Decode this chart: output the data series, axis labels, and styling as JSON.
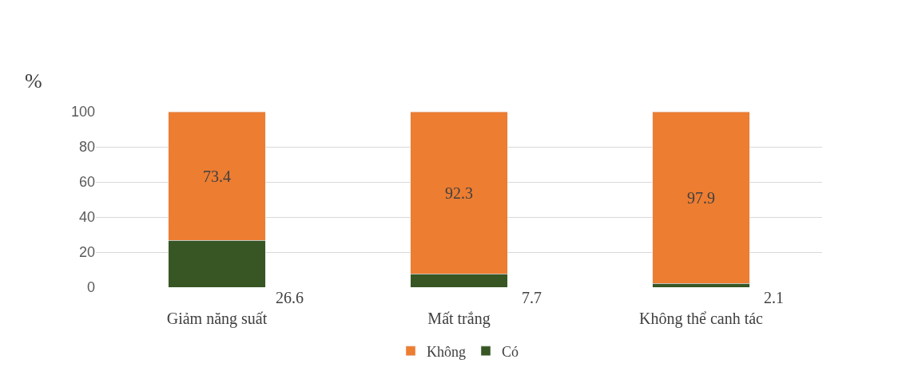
{
  "chart_data": {
    "type": "bar",
    "stacked": true,
    "ylabel": "%",
    "categories": [
      "Giảm năng suất",
      "Mất trắng",
      "Không thể canh tác"
    ],
    "series": [
      {
        "name": "Có",
        "color": "#375623",
        "values": [
          26.6,
          7.7,
          2.1
        ]
      },
      {
        "name": "Không",
        "color": "#ed7d31",
        "values": [
          73.4,
          92.3,
          97.9
        ]
      }
    ],
    "ylim": [
      0,
      100
    ],
    "yticks": [
      0,
      20,
      40,
      60,
      80,
      100
    ],
    "grid": "y",
    "legend": "bottom",
    "data_labels": true
  }
}
